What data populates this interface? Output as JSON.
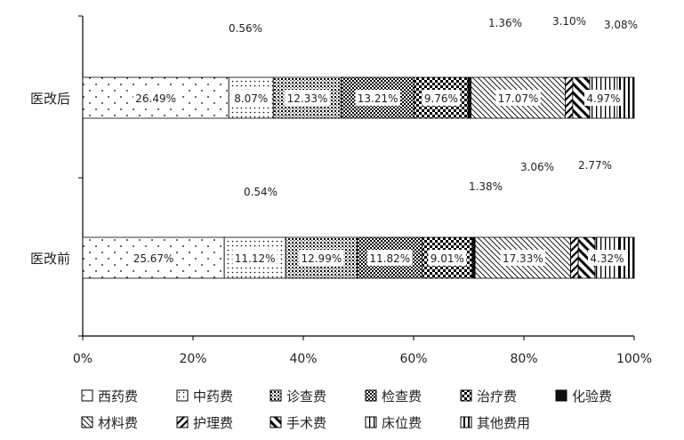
{
  "chart_data": {
    "type": "bar",
    "orientation": "horizontal",
    "stacked": true,
    "normalized": true,
    "categories": [
      "医改后",
      "医改前"
    ],
    "series": [
      {
        "name": "西药费",
        "pattern": "sparse-dots",
        "values": [
          26.49,
          25.67
        ],
        "labels": [
          "26.49%",
          "25.67%"
        ]
      },
      {
        "name": "中药费",
        "pattern": "dense-dots",
        "values": [
          8.07,
          11.12
        ],
        "labels": [
          "8.07%",
          "11.12%"
        ]
      },
      {
        "name": "诊查费",
        "pattern": "small-grid",
        "values": [
          12.33,
          12.99
        ],
        "labels": [
          "12.33%",
          "12.99%"
        ]
      },
      {
        "name": "检查费",
        "pattern": "dark-check",
        "values": [
          13.21,
          11.82
        ],
        "labels": [
          "13.21%",
          "11.82%"
        ]
      },
      {
        "name": "治疗费",
        "pattern": "big-check",
        "values": [
          9.76,
          9.01
        ],
        "labels": [
          "9.76%",
          "9.01%"
        ]
      },
      {
        "name": "化验费",
        "pattern": "solid-dark",
        "values": [
          0.56,
          0.54
        ],
        "labels": [
          "0.56%",
          "0.54%"
        ]
      },
      {
        "name": "材料费",
        "pattern": "diag-lines",
        "values": [
          17.07,
          17.33
        ],
        "labels": [
          "17.07%",
          "17.33%"
        ]
      },
      {
        "name": "护理费",
        "pattern": "diag-bold",
        "values": [
          1.36,
          1.38
        ],
        "labels": [
          "1.36%",
          "1.38%"
        ]
      },
      {
        "name": "手术费",
        "pattern": "diag-mixed",
        "values": [
          3.1,
          3.06
        ],
        "labels": [
          "3.10%",
          "3.06%"
        ]
      },
      {
        "name": "床位费",
        "pattern": "vert-lines",
        "values": [
          4.97,
          4.32
        ],
        "labels": [
          "4.97%",
          "4.32%"
        ]
      },
      {
        "name": "其他费用",
        "pattern": "vert-thick",
        "values": [
          3.08,
          2.77
        ],
        "labels": [
          "3.08%",
          "2.77%"
        ]
      }
    ],
    "xlim": [
      0,
      100
    ],
    "xticks": [
      "0%",
      "20%",
      "40%",
      "60%",
      "80%",
      "100%"
    ],
    "grid": false,
    "legend_position": "bottom",
    "colors": {
      "line": "#000000",
      "text": "#222222",
      "label_bg": "#ffffff"
    }
  }
}
